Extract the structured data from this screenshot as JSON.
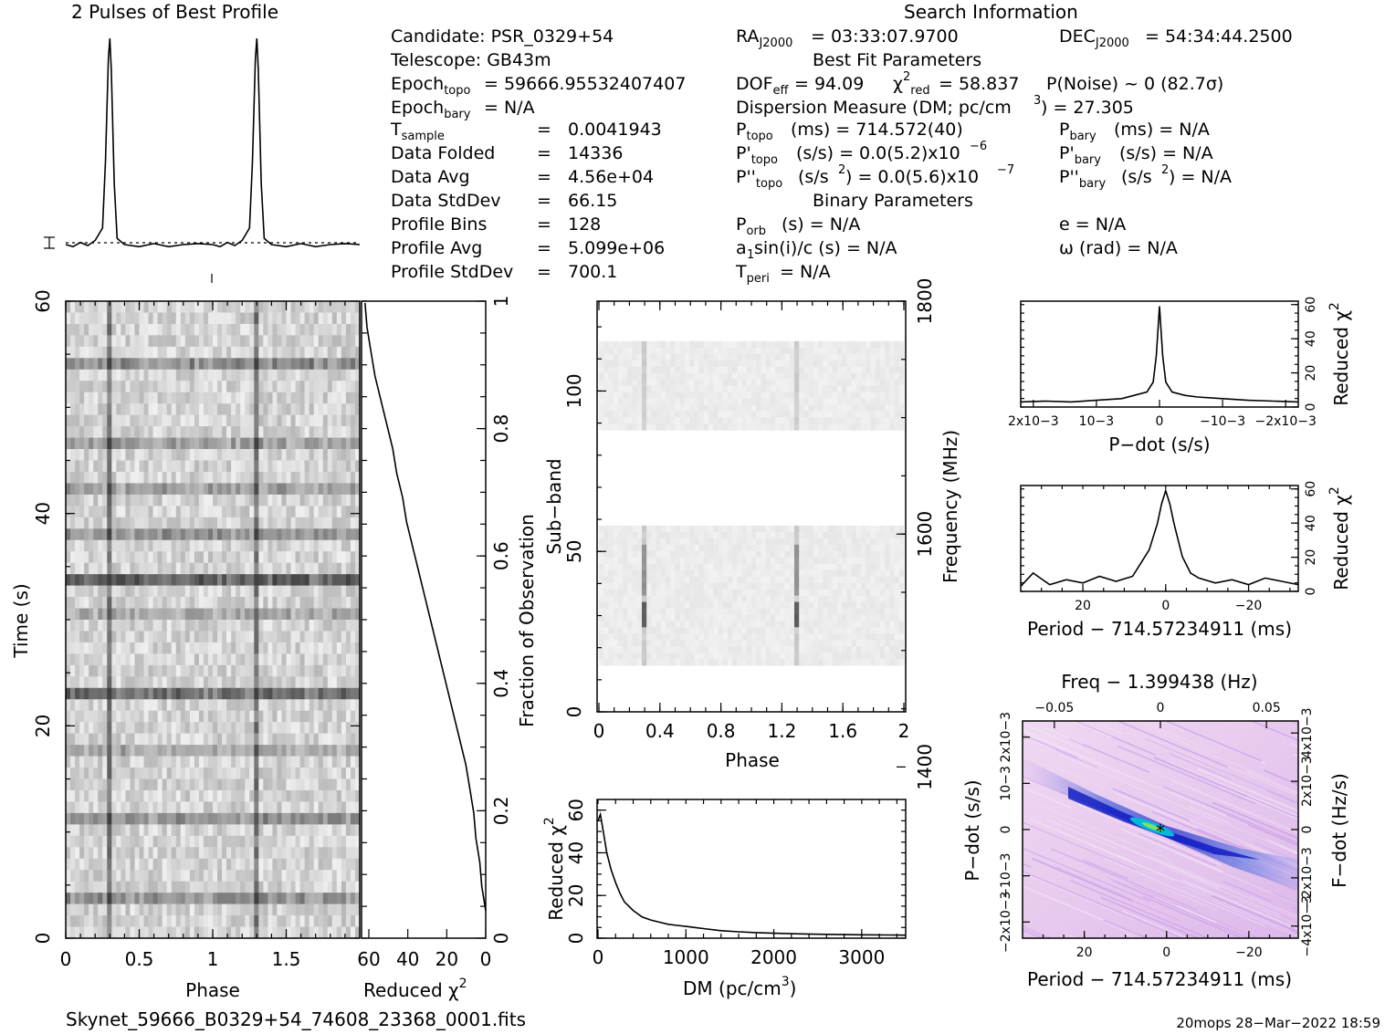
{
  "header": {
    "profile_title": "2 Pulses of Best Profile",
    "search_title": "Search Information",
    "best_fit_title": "Best Fit Parameters",
    "binary_title": "Binary Parameters",
    "footer_file": "Skynet_59666_B0329+54_74608_23368_0001.fits",
    "footer_stamp": "20mops 28−Mar−2022 18:59"
  },
  "info": {
    "candidate": "Candidate:  PSR_0329+54",
    "telescope": "Telescope:  GB43m",
    "epoch_topo": "= 59666.95532407407",
    "epoch_bary": "= N/A",
    "tsample": "0.0041943",
    "data_folded": "14336",
    "data_avg": "4.56e+04",
    "data_stddev": "66.15",
    "profile_bins": "128",
    "profile_avg": "5.099e+06",
    "profile_stddev": "700.1",
    "lbl_data_folded": "Data Folded",
    "lbl_data_avg": "Data Avg",
    "lbl_data_stddev": "Data StdDev",
    "lbl_profile_bins": "Profile Bins",
    "lbl_profile_avg": "Profile Avg",
    "lbl_profile_stddev": "Profile StdDev",
    "ra": "= 03:33:07.9700",
    "dec": "= 54:34:44.2500",
    "dof_line": "= 94.09",
    "chi_line": "= 58.837",
    "pnoise": "P(Noise) ~ 0    (82.7σ)",
    "dm_line": "Dispersion Measure (DM; pc/cm",
    "dm_val": ") = 27.305",
    "ptopo": "(ms) =  714.572(40)",
    "pdtopo": "(s/s) = 0.0(5.2)x10",
    "pdtopo_exp": "−6",
    "pddtopo": "(s/s",
    "pddtopo_b": ") = 0.0(5.6)x10",
    "pddtopo_exp": "−7",
    "pbary": "(ms) = N/A",
    "pdbary": "(s/s) = N/A",
    "pddbary": "(s/s",
    "pddbary_b": ") = N/A",
    "porb": "(s) = N/A",
    "a1sin": "a",
    "a1sin_b": "sin(i)/c (s) = N/A",
    "tperi": "= N/A",
    "ecc": "e = N/A",
    "omega": "ω (rad) = N/A"
  },
  "chart_data": [
    {
      "type": "line",
      "name": "profile",
      "title": "2 Pulses of Best Profile",
      "x": [
        0,
        0.05,
        0.1,
        0.15,
        0.2,
        0.25,
        0.27,
        0.29,
        0.3,
        0.31,
        0.33,
        0.35,
        0.4,
        0.5,
        0.6,
        0.7,
        0.8,
        0.9,
        1.0,
        1.05,
        1.1,
        1.15,
        1.2,
        1.25,
        1.27,
        1.29,
        1.3,
        1.31,
        1.33,
        1.35,
        1.4,
        1.5,
        1.6,
        1.7,
        1.8,
        1.9,
        2.0
      ],
      "y": [
        0,
        -0.01,
        0.01,
        -0.005,
        0.02,
        0.08,
        0.4,
        0.9,
        1.0,
        0.85,
        0.3,
        0.03,
        0,
        -0.01,
        0.005,
        -0.01,
        0,
        0.005,
        0,
        -0.01,
        0.01,
        -0.005,
        0.02,
        0.08,
        0.4,
        0.9,
        1.0,
        0.85,
        0.3,
        0.03,
        0,
        -0.01,
        0.005,
        -0.01,
        0,
        0.005,
        0
      ]
    },
    {
      "type": "heatmap",
      "name": "time-phase",
      "xlabel": "Phase",
      "ylabel": "Time (s)",
      "xlim": [
        0,
        2
      ],
      "ylim": [
        0,
        60
      ],
      "xticks": [
        "0",
        "0.5",
        "1",
        "1.5"
      ],
      "yticks": [
        "0",
        "20",
        "40",
        "60"
      ]
    },
    {
      "type": "line",
      "name": "time-chi2",
      "xlabel": "Reduced χ",
      "ylabel": "Fraction of Observation",
      "xlim": [
        60,
        0
      ],
      "ylim": [
        0,
        1
      ],
      "xticks": [
        "60",
        "40",
        "20",
        "0"
      ],
      "yticks": [
        "0",
        "0.2",
        "0.4",
        "0.6",
        "0.8",
        "1"
      ],
      "x": [
        0,
        2,
        3,
        5,
        6,
        8,
        10,
        13,
        16,
        19,
        22,
        25,
        28,
        31,
        34,
        37,
        40,
        42,
        45,
        47,
        50,
        53,
        56,
        58,
        60,
        61
      ],
      "y": [
        0,
        0.04,
        0.08,
        0.12,
        0.16,
        0.2,
        0.24,
        0.28,
        0.32,
        0.36,
        0.4,
        0.44,
        0.48,
        0.52,
        0.56,
        0.6,
        0.64,
        0.68,
        0.72,
        0.76,
        0.8,
        0.84,
        0.88,
        0.92,
        0.96,
        1.0
      ]
    },
    {
      "type": "heatmap",
      "name": "subband-phase",
      "xlabel": "Phase",
      "ylabel": "Sub−band",
      "ylabel2": "Frequency (MHz)",
      "xlim": [
        0,
        2
      ],
      "ylim": [
        0,
        128
      ],
      "xticks": [
        "0",
        "0.4",
        "0.8",
        "1.2",
        "1.6",
        "2"
      ],
      "yticks": [
        "0",
        "50",
        "100"
      ],
      "y2ticks": [
        "1400",
        "1600",
        "1800"
      ]
    },
    {
      "type": "line",
      "name": "dm-chi2",
      "xlabel": "DM (pc/cm",
      "ylabel": "Reduced χ",
      "xlim": [
        0,
        3500
      ],
      "ylim": [
        0,
        65
      ],
      "xticks": [
        "0",
        "1000",
        "2000",
        "3000"
      ],
      "yticks": [
        "0",
        "20",
        "40",
        "60"
      ],
      "x": [
        0,
        27,
        60,
        100,
        150,
        200,
        250,
        300,
        400,
        500,
        600,
        700,
        800,
        900,
        1000,
        1200,
        1400,
        1600,
        1800,
        2000,
        2300,
        2600,
        3000,
        3300,
        3500
      ],
      "y": [
        55,
        58,
        50,
        40,
        32,
        26,
        21,
        17,
        13,
        10,
        8.5,
        7.5,
        6.5,
        6,
        5.5,
        4.5,
        3.5,
        3,
        2.6,
        2.3,
        2,
        1.8,
        1.6,
        1.5,
        1.4
      ]
    },
    {
      "type": "line",
      "name": "pdot-chi2",
      "xlabel": "P−dot (s/s)",
      "ylabel": "Reduced χ",
      "xlim": [
        0.002,
        -0.002
      ],
      "ylim": [
        0,
        62
      ],
      "xticks": [
        "2x10−3",
        "10−3",
        "0",
        "−10−3",
        "−2x10−3"
      ],
      "yticks": [
        "0",
        "20",
        "40",
        "60"
      ],
      "x": [
        0.0022,
        0.0018,
        0.0014,
        0.001,
        0.0006,
        0.0004,
        0.0002,
        0.0001,
        5e-05,
        0,
        -5e-05,
        -0.0001,
        -0.0002,
        -0.0004,
        -0.0006,
        -0.001,
        -0.0014,
        -0.0018,
        -0.0022
      ],
      "y": [
        2,
        2.5,
        2,
        3,
        4,
        6,
        8,
        14,
        30,
        60,
        30,
        14,
        8,
        6,
        5,
        4,
        3,
        2.5,
        2
      ]
    },
    {
      "type": "line",
      "name": "period-chi2",
      "xlabel": "Period − 714.57234911 (ms)",
      "ylabel": "Reduced χ",
      "xlim": [
        35,
        -32
      ],
      "ylim": [
        0,
        62
      ],
      "xticks": [
        "20",
        "0",
        "−20"
      ],
      "yticks": [
        "0",
        "20",
        "40",
        "60"
      ],
      "x": [
        35,
        32,
        28,
        24,
        20,
        16,
        12,
        8,
        6,
        4,
        2,
        1,
        0,
        -1,
        -2,
        -4,
        -6,
        -8,
        -12,
        -16,
        -20,
        -24,
        -28,
        -32
      ],
      "y": [
        2,
        10,
        3,
        6,
        4,
        8,
        5,
        8,
        16,
        24,
        40,
        52,
        60,
        52,
        40,
        20,
        10,
        7,
        4,
        6,
        3,
        7,
        5,
        3
      ]
    },
    {
      "type": "heatmap",
      "name": "period-pdot",
      "title": "Freq − 1.399438 (Hz)",
      "xlabel": "Period − 714.57234911 (ms)",
      "ylabel": "P−dot (s/s)",
      "ylabel2": "F−dot (Hz/s)",
      "xlim": [
        35,
        -32
      ],
      "ylim": [
        -0.002,
        0.002
      ],
      "xticks": [
        "20",
        "0",
        "−20"
      ],
      "topticks": [
        "−0.05",
        "0",
        "0.05"
      ],
      "yticks": [
        "2x10−3",
        "10−3",
        "0",
        "−10−3",
        "−2x10−3"
      ],
      "y2ticks": [
        "−4x10−3",
        "−2x10−3",
        "0",
        "2x10−3",
        "4x10−3"
      ]
    }
  ]
}
